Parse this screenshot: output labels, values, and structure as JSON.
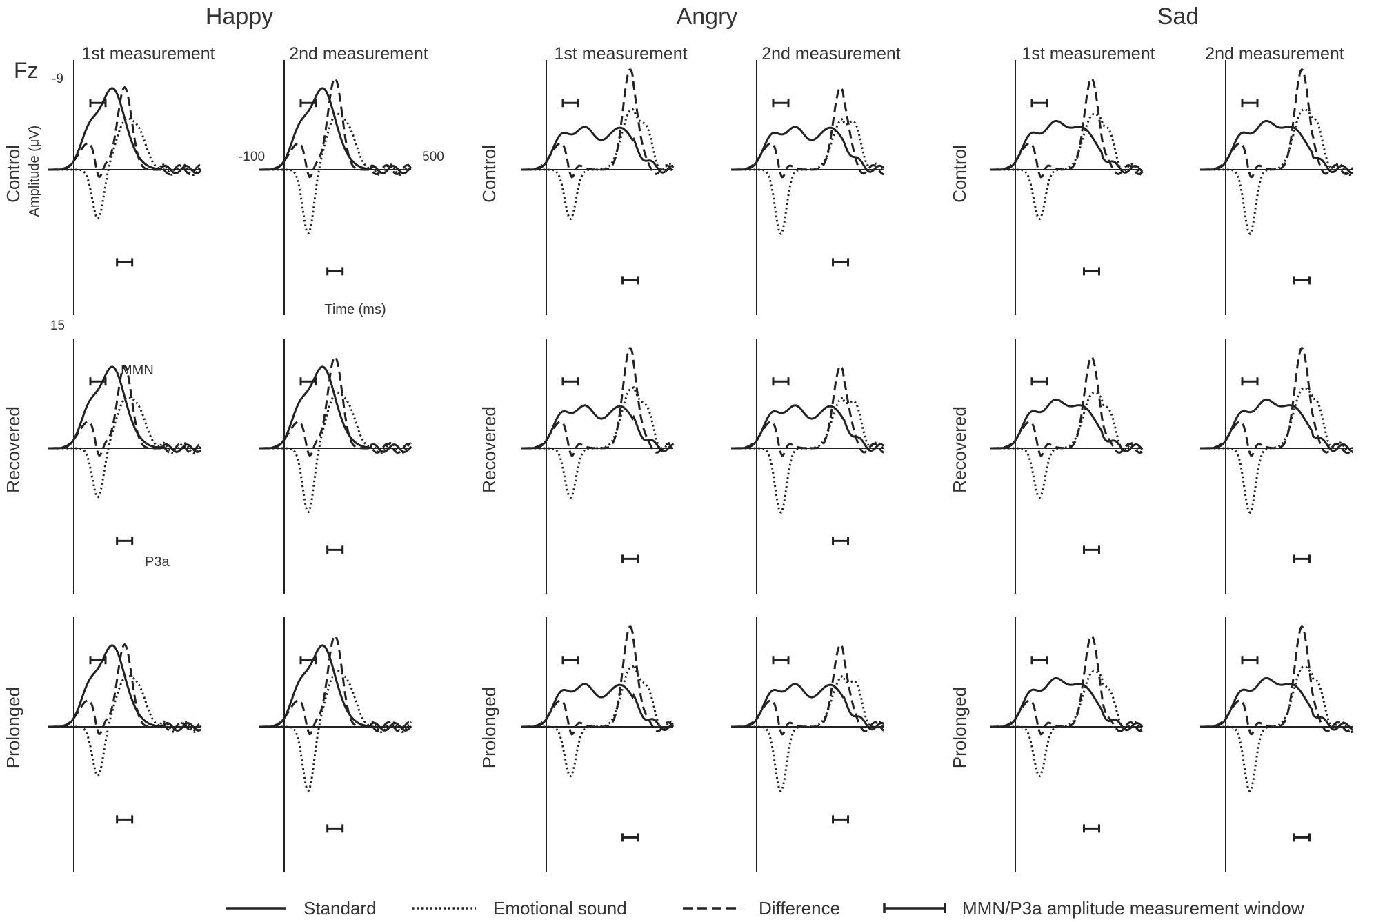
{
  "chart_data": {
    "type": "line",
    "electrode": "Fz",
    "emotions": [
      "Happy",
      "Angry",
      "Sad"
    ],
    "measurements": [
      "1st measurement",
      "2nd measurement"
    ],
    "groups": [
      "Control",
      "Recovered",
      "Prolonged"
    ],
    "ylabel": "Amplitude (μV)",
    "xlabel": "Time (ms)",
    "y_tick_top": "-9",
    "y_tick_bottom": "15",
    "x_tick_start": "-100",
    "x_tick_end": "500",
    "xlim": [
      -100,
      500
    ],
    "ylim": [
      -9,
      15
    ],
    "y_inverted": true,
    "annotations": {
      "mmn": "MMN",
      "p3a": "P3a"
    },
    "legend": {
      "standard": "Standard",
      "emotional": "Emotional sound",
      "difference": "Difference",
      "window": "MMN/P3a amplitude measurement window"
    },
    "colors": {
      "trace": "#222222",
      "axis": "#222222",
      "text": "#333333"
    }
  }
}
